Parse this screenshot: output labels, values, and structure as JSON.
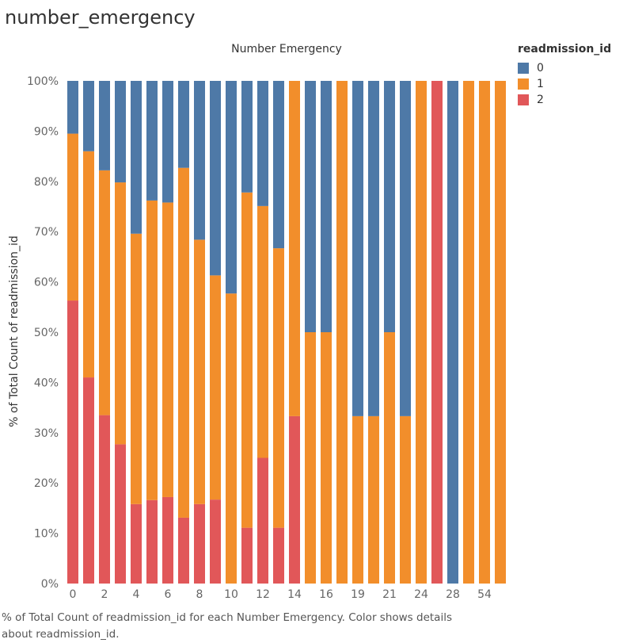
{
  "sheet_title": "number_emergency",
  "caption": "% of Total Count of readmission_id for each Number Emergency.  Color shows details about readmission_id.",
  "legend": {
    "title": "readmission_id",
    "items": [
      {
        "label": "0",
        "color": "#4e79a7"
      },
      {
        "label": "1",
        "color": "#f28e2b"
      },
      {
        "label": "2",
        "color": "#e15759"
      }
    ]
  },
  "chart_data": {
    "type": "bar",
    "stacked": true,
    "title": "Number Emergency",
    "xlabel": "",
    "ylabel": "% of Total Count of readmission_id",
    "ylim": [
      0,
      100
    ],
    "yticks": [
      "0%",
      "10%",
      "20%",
      "30%",
      "40%",
      "50%",
      "60%",
      "70%",
      "80%",
      "90%",
      "100%"
    ],
    "categories": [
      "0",
      "1",
      "2",
      "3",
      "4",
      "5",
      "6",
      "7",
      "8",
      "9",
      "10",
      "11",
      "12",
      "13",
      "14",
      "15",
      "16",
      "18",
      "19",
      "20",
      "21",
      "22",
      "24",
      "25",
      "28",
      "37",
      "54",
      "64"
    ],
    "tick_labels": [
      "0",
      "2",
      "4",
      "6",
      "8",
      "10",
      "12",
      "14",
      "16",
      "19",
      "21",
      "24",
      "28",
      "54"
    ],
    "series": [
      {
        "name": "2",
        "color": "#e15759",
        "values": [
          56.3,
          41.0,
          33.5,
          27.7,
          15.8,
          16.6,
          17.2,
          13.1,
          15.8,
          16.7,
          0,
          11.1,
          25.0,
          11.1,
          33.3,
          0,
          0,
          0,
          0,
          0,
          0,
          0,
          0,
          100,
          0,
          0,
          0,
          0
        ]
      },
      {
        "name": "1",
        "color": "#f28e2b",
        "values": [
          33.2,
          45.0,
          48.7,
          52.1,
          53.8,
          59.6,
          58.6,
          69.6,
          52.6,
          44.6,
          57.7,
          66.7,
          50.1,
          55.6,
          66.7,
          50.0,
          50.0,
          100,
          33.3,
          33.3,
          50.0,
          33.3,
          100,
          0,
          0,
          100,
          100,
          100
        ]
      },
      {
        "name": "0",
        "color": "#4e79a7",
        "values": [
          10.5,
          14.0,
          17.8,
          20.2,
          30.4,
          23.8,
          24.2,
          17.3,
          31.6,
          38.7,
          42.3,
          22.2,
          24.9,
          33.3,
          0,
          50.0,
          50.0,
          0,
          66.7,
          66.7,
          50.0,
          66.7,
          0,
          0,
          100,
          0,
          0,
          0
        ]
      }
    ],
    "grid": false,
    "legend_position": "right"
  }
}
